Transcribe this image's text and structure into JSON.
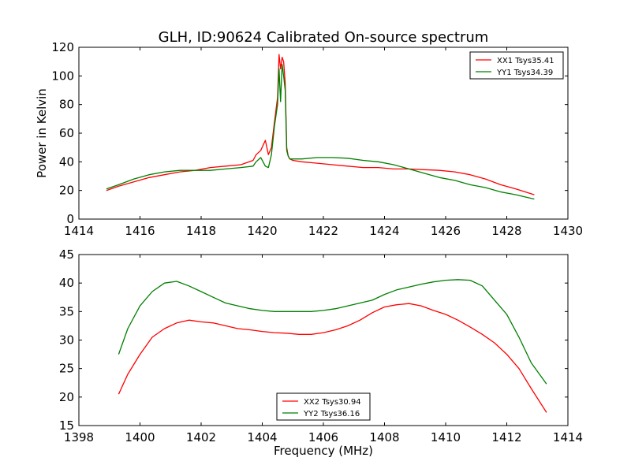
{
  "chart_data": [
    {
      "type": "line",
      "title": "GLH, ID:90624 Calibrated On-source spectrum",
      "xlabel": "",
      "ylabel": "Power in Kelvin",
      "xlim": [
        1414,
        1430
      ],
      "ylim": [
        0,
        120
      ],
      "xticks": [
        1414,
        1416,
        1418,
        1420,
        1422,
        1424,
        1426,
        1428,
        1430
      ],
      "yticks": [
        0,
        20,
        40,
        60,
        80,
        100,
        120
      ],
      "legend_position": "top-right",
      "grid": false,
      "series": [
        {
          "name": "XX1 Tsys35.41",
          "color": "#ff0000",
          "x": [
            1414.9,
            1415.3,
            1415.8,
            1416.3,
            1416.8,
            1417.3,
            1417.8,
            1418.3,
            1418.8,
            1419.3,
            1419.7,
            1419.8,
            1419.95,
            1420.1,
            1420.2,
            1420.3,
            1420.4,
            1420.5,
            1420.55,
            1420.6,
            1420.65,
            1420.7,
            1420.75,
            1420.8,
            1420.85,
            1420.9,
            1421.0,
            1421.3,
            1421.8,
            1422.3,
            1422.8,
            1423.3,
            1423.8,
            1424.3,
            1424.8,
            1425.3,
            1425.8,
            1426.3,
            1426.8,
            1427.3,
            1427.8,
            1428.3,
            1428.9
          ],
          "y": [
            20,
            23,
            26,
            29,
            31,
            33,
            34,
            36,
            37,
            38,
            41,
            45,
            48,
            55,
            45,
            50,
            68,
            85,
            115,
            105,
            113,
            110,
            95,
            50,
            44,
            42,
            41,
            40,
            39,
            38,
            37,
            36,
            36,
            35,
            35,
            34.5,
            34,
            33,
            31,
            28,
            24,
            21,
            17
          ]
        },
        {
          "name": "YY1 Tsys34.39",
          "color": "#007f00",
          "x": [
            1414.9,
            1415.3,
            1415.8,
            1416.3,
            1416.8,
            1417.3,
            1417.8,
            1418.3,
            1418.8,
            1419.3,
            1419.7,
            1419.8,
            1419.95,
            1420.1,
            1420.2,
            1420.3,
            1420.4,
            1420.5,
            1420.55,
            1420.6,
            1420.65,
            1420.7,
            1420.75,
            1420.8,
            1420.85,
            1420.9,
            1421.0,
            1421.3,
            1421.8,
            1422.3,
            1422.8,
            1423.3,
            1423.8,
            1424.3,
            1424.8,
            1425.3,
            1425.8,
            1426.3,
            1426.8,
            1427.3,
            1427.8,
            1428.3,
            1428.9
          ],
          "y": [
            21,
            24,
            28,
            31,
            33,
            34,
            34,
            34,
            35,
            36,
            37,
            40,
            43,
            37,
            36,
            45,
            65,
            80,
            105,
            82,
            108,
            100,
            90,
            48,
            44,
            42,
            42,
            42,
            43,
            43,
            42.5,
            41,
            40,
            38,
            35,
            32,
            29,
            27,
            24,
            22,
            19,
            17,
            14
          ]
        }
      ]
    },
    {
      "type": "line",
      "title": "",
      "xlabel": "Frequency (MHz)",
      "ylabel": "",
      "xlim": [
        1398,
        1414
      ],
      "ylim": [
        15,
        45
      ],
      "xticks": [
        1398,
        1400,
        1402,
        1404,
        1406,
        1408,
        1410,
        1412,
        1414
      ],
      "yticks": [
        15,
        20,
        25,
        30,
        35,
        40,
        45
      ],
      "legend_position": "bottom-center",
      "grid": false,
      "series": [
        {
          "name": "XX2 Tsys30.94",
          "color": "#ff0000",
          "x": [
            1399.3,
            1399.6,
            1400.0,
            1400.4,
            1400.8,
            1401.2,
            1401.6,
            1402.0,
            1402.4,
            1402.8,
            1403.2,
            1403.6,
            1404.0,
            1404.4,
            1404.8,
            1405.2,
            1405.6,
            1406.0,
            1406.4,
            1406.8,
            1407.2,
            1407.6,
            1408.0,
            1408.4,
            1408.8,
            1409.2,
            1409.6,
            1410.0,
            1410.4,
            1410.8,
            1411.2,
            1411.6,
            1412.0,
            1412.4,
            1412.8,
            1413.3
          ],
          "y": [
            20.5,
            24,
            27.5,
            30.5,
            32,
            33,
            33.5,
            33.2,
            33,
            32.5,
            32,
            31.8,
            31.5,
            31.3,
            31.2,
            31,
            31,
            31.3,
            31.8,
            32.5,
            33.5,
            34.8,
            35.8,
            36.2,
            36.4,
            36.0,
            35.2,
            34.5,
            33.5,
            32.3,
            31,
            29.5,
            27.5,
            25,
            21.5,
            17.3
          ]
        },
        {
          "name": "YY2 Tsys36.16",
          "color": "#007f00",
          "x": [
            1399.3,
            1399.6,
            1400.0,
            1400.4,
            1400.8,
            1401.2,
            1401.6,
            1402.0,
            1402.4,
            1402.8,
            1403.2,
            1403.6,
            1404.0,
            1404.4,
            1404.8,
            1405.2,
            1405.6,
            1406.0,
            1406.4,
            1406.8,
            1407.2,
            1407.6,
            1408.0,
            1408.4,
            1408.8,
            1409.2,
            1409.6,
            1410.0,
            1410.4,
            1410.8,
            1411.2,
            1411.6,
            1412.0,
            1412.4,
            1412.8,
            1413.3
          ],
          "y": [
            27.5,
            32,
            36,
            38.5,
            40,
            40.3,
            39.5,
            38.5,
            37.5,
            36.5,
            36,
            35.5,
            35.2,
            35,
            35,
            35,
            35,
            35.2,
            35.5,
            36,
            36.5,
            37,
            38,
            38.8,
            39.3,
            39.8,
            40.2,
            40.5,
            40.6,
            40.5,
            39.5,
            37,
            34.5,
            30.5,
            26,
            22.3
          ]
        }
      ]
    }
  ]
}
